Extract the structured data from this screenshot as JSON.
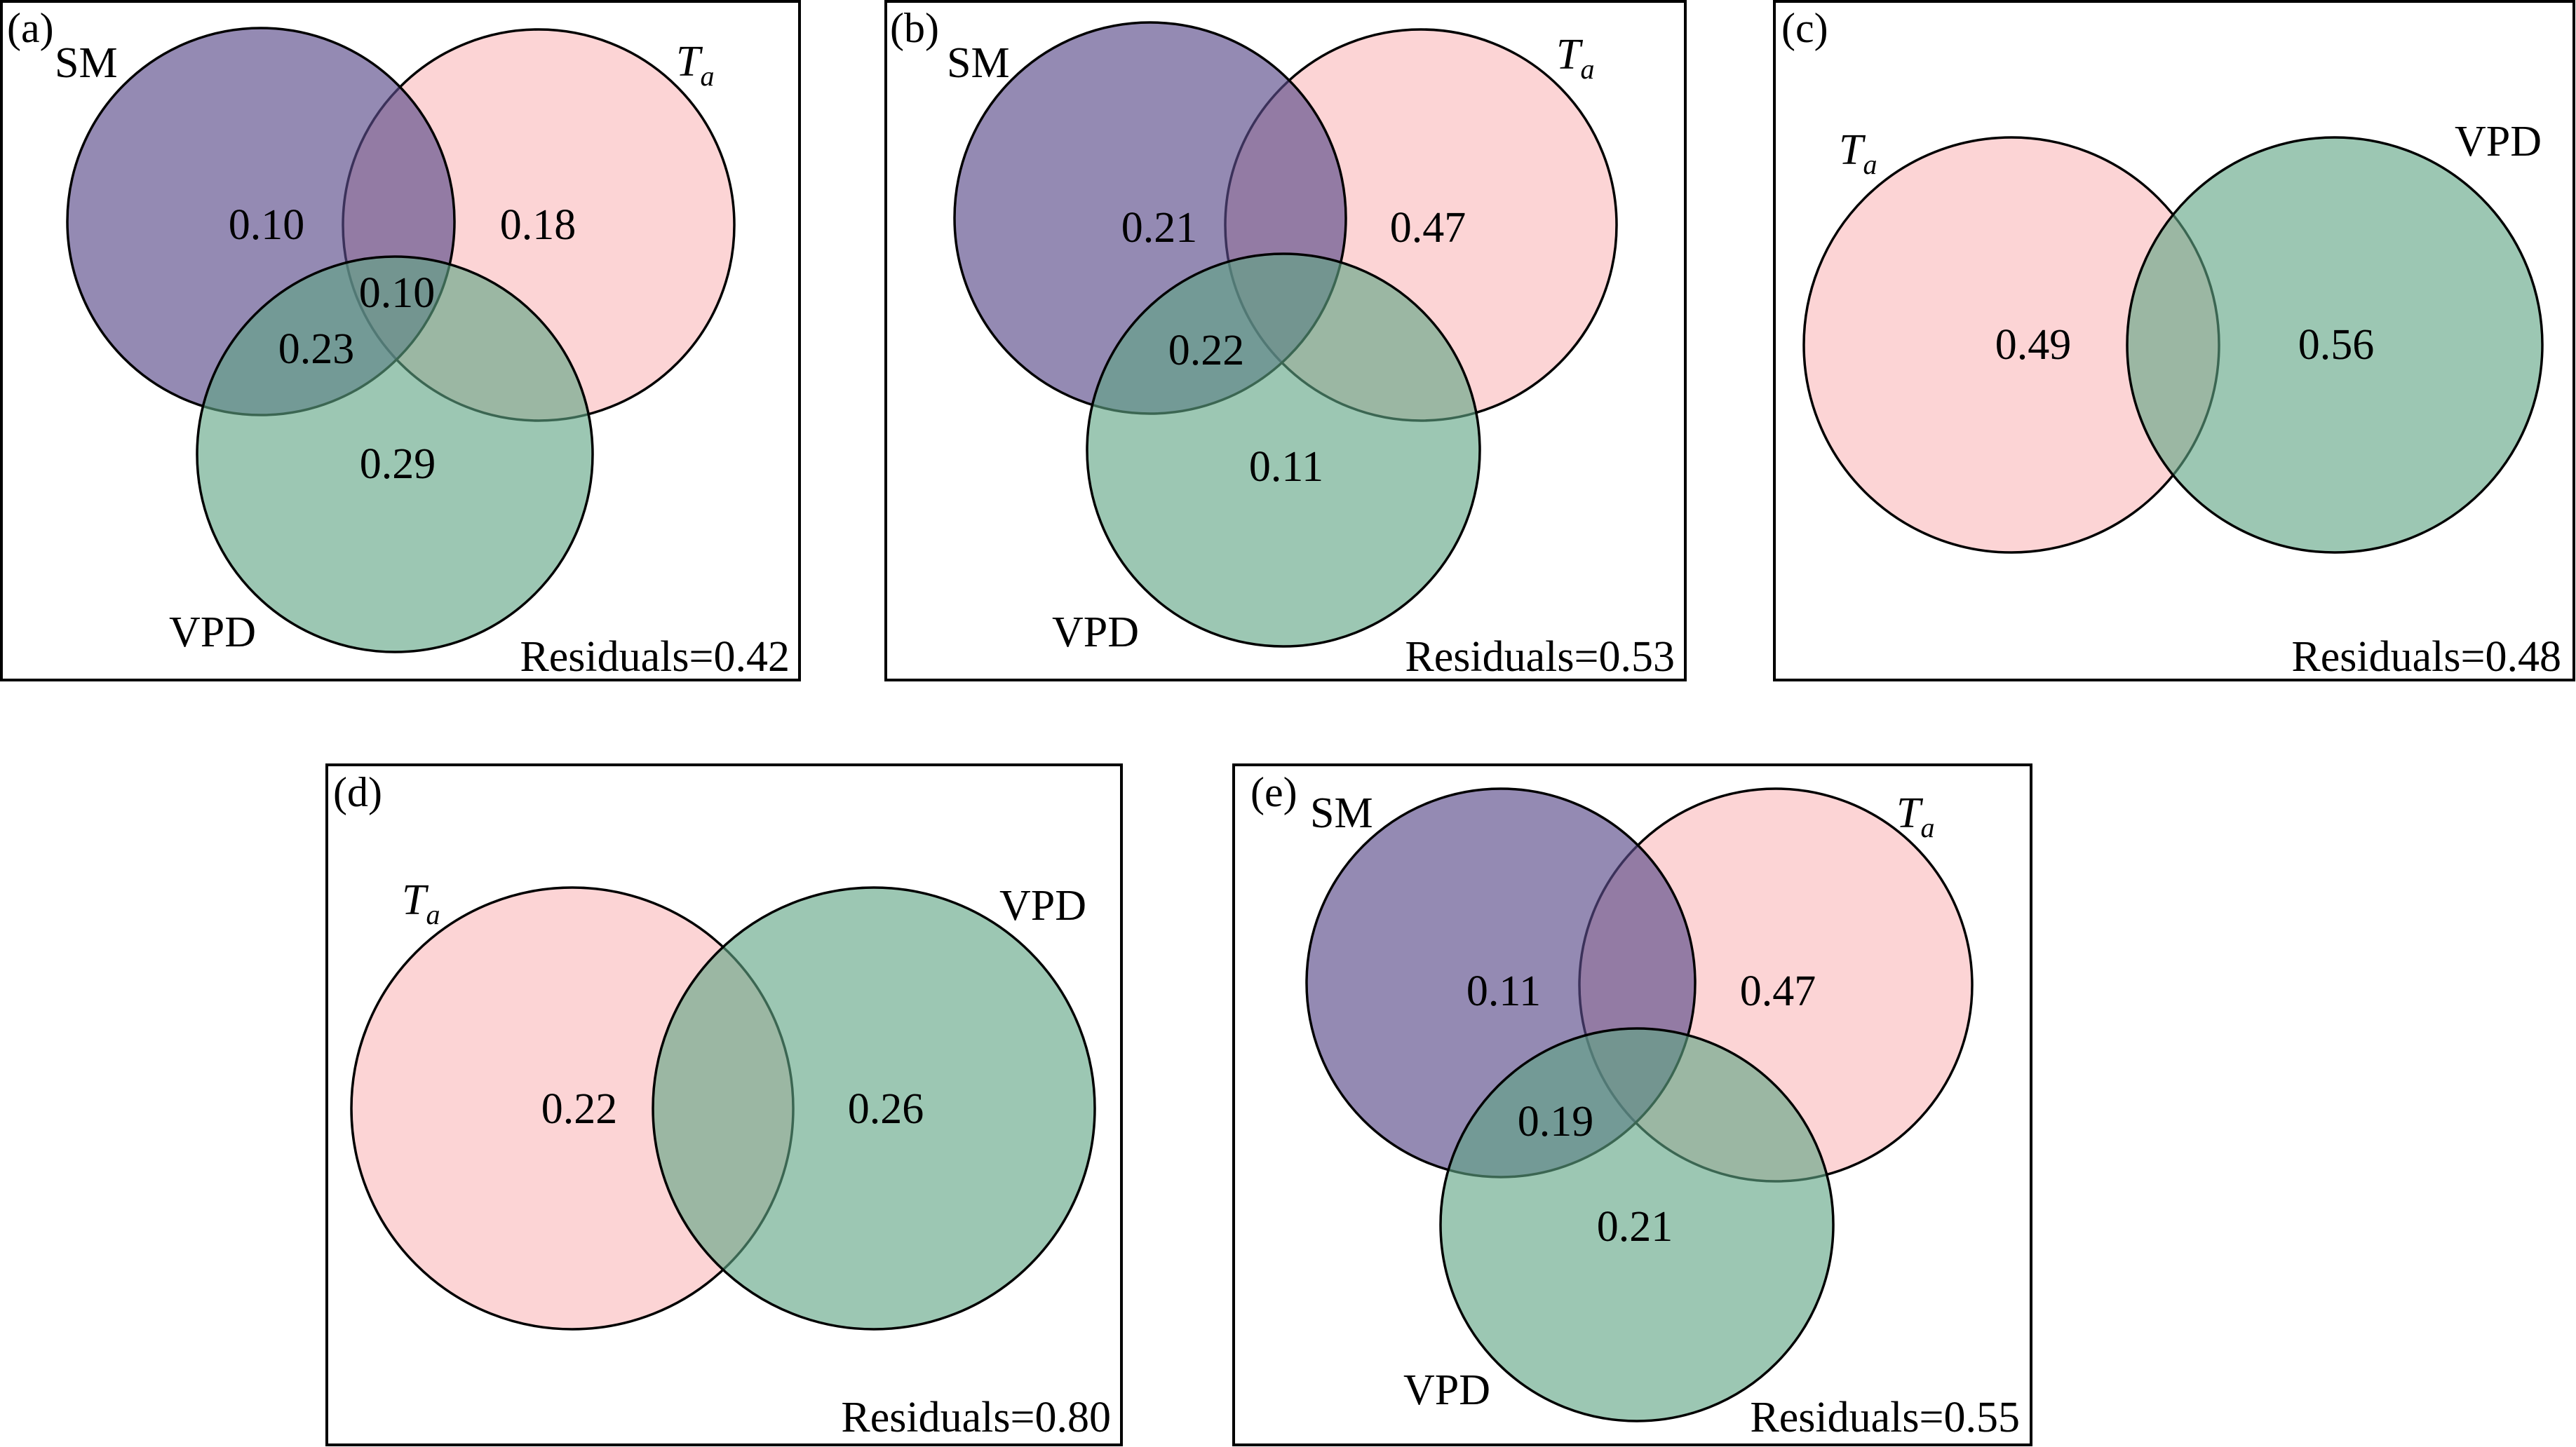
{
  "panels": [
    {
      "tag": "(a)",
      "sets": {
        "sm": "SM",
        "ta": "T",
        "ta_sub": "a",
        "vpd": "VPD"
      },
      "values": {
        "sm": "0.10",
        "ta": "0.18",
        "sm_ta_vpd": "0.10",
        "sm_vpd": "0.23",
        "vpd": "0.29"
      },
      "residuals": "Residuals=0.42"
    },
    {
      "tag": "(b)",
      "sets": {
        "sm": "SM",
        "ta": "T",
        "ta_sub": "a",
        "vpd": "VPD"
      },
      "values": {
        "sm": "0.21",
        "ta": "0.47",
        "sm_vpd": "0.22",
        "vpd": "0.11"
      },
      "residuals": "Residuals=0.53"
    },
    {
      "tag": "(c)",
      "sets": {
        "ta": "T",
        "ta_sub": "a",
        "vpd": "VPD"
      },
      "values": {
        "ta": "0.49",
        "vpd": "0.56"
      },
      "residuals": "Residuals=0.48"
    },
    {
      "tag": "(d)",
      "sets": {
        "ta": "T",
        "ta_sub": "a",
        "vpd": "VPD"
      },
      "values": {
        "ta": "0.22",
        "vpd": "0.26"
      },
      "residuals": "Residuals=0.80"
    },
    {
      "tag": "(e)",
      "sets": {
        "sm": "SM",
        "ta": "T",
        "ta_sub": "a",
        "vpd": "VPD"
      },
      "values": {
        "sm": "0.11",
        "ta": "0.47",
        "sm_vpd": "0.19",
        "vpd": "0.21"
      },
      "residuals": "Residuals=0.55"
    }
  ],
  "colors": {
    "sm": "#5b4b8a",
    "ta": "#fbc4c5",
    "vpd": "#5fa585",
    "frame": "#000000"
  }
}
